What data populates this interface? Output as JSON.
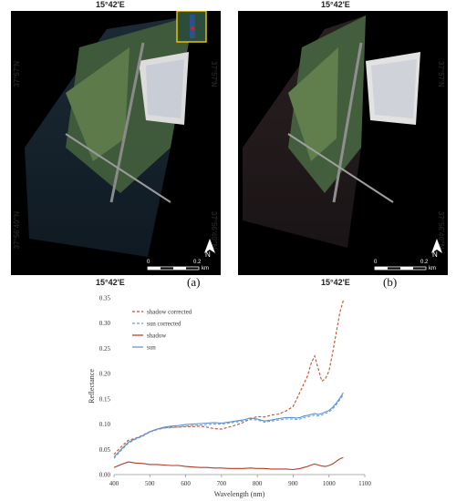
{
  "images": {
    "panel_a": {
      "label": "(a)",
      "top_coord": "15°42'E",
      "left_coords": [
        "37°57'N",
        "37°56'40\"N"
      ],
      "right_coords": [
        "37°57'N",
        "37°56'40\"N"
      ],
      "scale": {
        "start": "0",
        "mid": "0.2",
        "unit": "km"
      },
      "north": "N"
    },
    "panel_b": {
      "label": "(b)",
      "top_coord": "15°42'E",
      "right_coords": [
        "37°57'N",
        "37°56'40\"N"
      ],
      "scale": {
        "start": "0",
        "mid": "0.2",
        "unit": "km"
      },
      "north": "N"
    }
  },
  "chart_top_coords": [
    "15°42'E",
    "15°42'E"
  ],
  "chart_data": {
    "type": "line",
    "xlabel": "Wavelength (nm)",
    "ylabel": "Reflectance",
    "xlim": [
      400,
      1100
    ],
    "ylim": [
      0,
      0.35
    ],
    "xticks": [
      "400",
      "500",
      "600",
      "700",
      "800",
      "900",
      "1000",
      "1100"
    ],
    "yticks": [
      "0.00",
      "0.05",
      "0.10",
      "0.15",
      "0.20",
      "0.25",
      "0.30",
      "0.35"
    ],
    "legend": "top-left",
    "x": [
      400,
      420,
      440,
      460,
      480,
      500,
      520,
      540,
      560,
      580,
      600,
      620,
      640,
      660,
      680,
      700,
      720,
      740,
      760,
      780,
      800,
      820,
      840,
      860,
      880,
      900,
      910,
      920,
      930,
      940,
      950,
      960,
      970,
      980,
      990,
      1000,
      1010,
      1020,
      1030,
      1040
    ],
    "series": [
      {
        "name": "shadow corrected",
        "style": "dashed",
        "color": "#c0502a",
        "values": [
          0.04,
          0.055,
          0.068,
          0.072,
          0.078,
          0.085,
          0.09,
          0.093,
          0.094,
          0.094,
          0.095,
          0.095,
          0.096,
          0.094,
          0.091,
          0.09,
          0.094,
          0.098,
          0.103,
          0.11,
          0.115,
          0.114,
          0.118,
          0.12,
          0.126,
          0.135,
          0.15,
          0.165,
          0.18,
          0.195,
          0.22,
          0.235,
          0.21,
          0.185,
          0.19,
          0.205,
          0.24,
          0.28,
          0.32,
          0.345
        ]
      },
      {
        "name": "sun corrected",
        "style": "dashed",
        "color": "#6d9ed6",
        "values": [
          0.032,
          0.048,
          0.062,
          0.07,
          0.076,
          0.084,
          0.089,
          0.092,
          0.093,
          0.094,
          0.096,
          0.097,
          0.098,
          0.099,
          0.1,
          0.1,
          0.102,
          0.104,
          0.106,
          0.109,
          0.108,
          0.104,
          0.106,
          0.108,
          0.11,
          0.11,
          0.109,
          0.11,
          0.113,
          0.114,
          0.116,
          0.118,
          0.116,
          0.118,
          0.121,
          0.124,
          0.13,
          0.138,
          0.148,
          0.158
        ]
      },
      {
        "name": "shadow",
        "style": "solid",
        "color": "#b33a26",
        "values": [
          0.014,
          0.02,
          0.025,
          0.023,
          0.022,
          0.02,
          0.02,
          0.019,
          0.018,
          0.018,
          0.016,
          0.015,
          0.014,
          0.014,
          0.013,
          0.013,
          0.012,
          0.012,
          0.012,
          0.013,
          0.012,
          0.012,
          0.011,
          0.011,
          0.011,
          0.01,
          0.011,
          0.012,
          0.014,
          0.016,
          0.019,
          0.021,
          0.019,
          0.017,
          0.016,
          0.018,
          0.021,
          0.026,
          0.031,
          0.034
        ]
      },
      {
        "name": "sun",
        "style": "solid",
        "color": "#5b8fd0",
        "values": [
          0.035,
          0.05,
          0.064,
          0.071,
          0.077,
          0.085,
          0.09,
          0.094,
          0.096,
          0.097,
          0.099,
          0.1,
          0.101,
          0.102,
          0.103,
          0.102,
          0.104,
          0.106,
          0.108,
          0.112,
          0.11,
          0.106,
          0.108,
          0.111,
          0.113,
          0.113,
          0.112,
          0.113,
          0.116,
          0.117,
          0.119,
          0.121,
          0.119,
          0.121,
          0.124,
          0.127,
          0.133,
          0.141,
          0.151,
          0.162
        ]
      }
    ]
  }
}
